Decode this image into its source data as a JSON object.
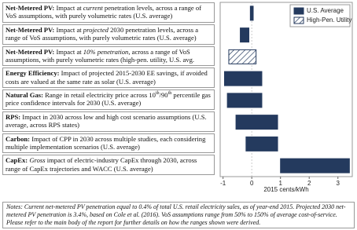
{
  "chart_data": {
    "type": "range-bar",
    "x_label": "2015 cents/kWh",
    "notes": "Notes: Current net-metered PV penetration equal to 0.4% of total U.S. retail electricity sales, as of year-end 2015. Projected 2030 net-metered PV penetration is 3.4%, based on Cole et al. (2016). VoS assumptions range from 50% to 150% of average cost-of-service. Please refer to the main body of the report for further details on how the ranges shown were derived.",
    "categories": [
      {
        "label": "Net-Metered PV:",
        "description": [
          "Impact at ",
          {
            "text": "current",
            "style": "italic"
          },
          " penetration levels, across a range of VoS assumptions, with purely volumetric rates (U.S. average)"
        ]
      },
      {
        "label": "Net-Metered PV:",
        "description": [
          "Impact at ",
          {
            "text": "projected",
            "style": "italic"
          },
          " 2030 penetration levels, across a range of VoS assumptions, with purely volumetric rates (U.S. average)"
        ]
      },
      {
        "label": "Net-Metered PV:",
        "description": [
          "Impact at ",
          {
            "text": "10% penetration",
            "style": "italic"
          },
          ", across a range of VoS assumptions, with purely volumetric rates (high-pen. utility, U.S. avg. price)"
        ]
      },
      {
        "label": "Energy Efficiency:",
        "description": [
          "Impact of projected 2015-2030 EE savings, if avoided costs are valued at the same rate as solar (U.S. average)"
        ]
      },
      {
        "label": "Natural Gas:",
        "description": [
          "Range in retail electricity price across 10",
          {
            "text": "th",
            "style": "sup"
          },
          "/90",
          {
            "text": "th",
            "style": "sup"
          },
          " percentile gas price confidence intervals for 2030 (U.S. average)"
        ]
      },
      {
        "label": "RPS:",
        "description": [
          "Impact in 2030 across low and high cost scenario assumptions (U.S. average, across RPS states)"
        ]
      },
      {
        "label": "Carbon:",
        "description": [
          "Impact of CPP in 2030 across multiple studies, each considering multiple implementation scenarios (U.S. average)"
        ]
      },
      {
        "label": "CapEx:",
        "description": [
          {
            "text": "Gross",
            "style": "italic"
          },
          " impact of electric-industry CapEx through 2030, across range of CapEx trajectories and WACC (U.S. average)"
        ]
      }
    ],
    "series": [
      {
        "name": "U.S. Average",
        "color": "#243a5e",
        "low": [
          -0.05,
          -0.4,
          null,
          -0.95,
          -0.85,
          -0.55,
          -0.2,
          1.0
        ],
        "high": [
          0.05,
          -0.1,
          null,
          0.35,
          0.35,
          0.9,
          0.9,
          3.4
        ]
      },
      {
        "name": "High-Pen. Utility",
        "color": "#243a5e",
        "pattern": "hatch",
        "low": [
          null,
          null,
          -0.8,
          null,
          null,
          null,
          null,
          null
        ],
        "high": [
          null,
          null,
          0.15,
          null,
          null,
          null,
          null,
          null
        ]
      }
    ],
    "xlim": [
      -1.1,
      3.5
    ],
    "xticks": [
      -1,
      0,
      1,
      2,
      3
    ],
    "legend": "top-right"
  }
}
